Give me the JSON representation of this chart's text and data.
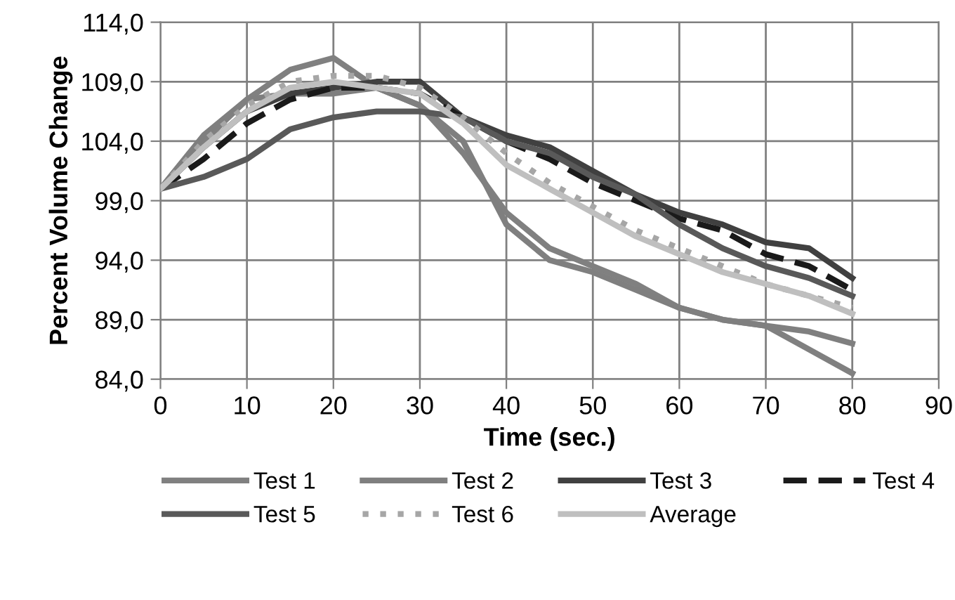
{
  "chart_data": {
    "type": "line",
    "xlabel": "Time (sec.)",
    "ylabel": "Percent Volume Change",
    "x": [
      0,
      5,
      10,
      15,
      20,
      25,
      30,
      35,
      40,
      45,
      50,
      55,
      60,
      65,
      70,
      75,
      80
    ],
    "series": [
      {
        "name": "Test 1",
        "color": "#808080",
        "line_style": "solid",
        "values": [
          100,
          104,
          107.5,
          110,
          111,
          108.5,
          107,
          103,
          98,
          95,
          93.5,
          92,
          90,
          89,
          88.5,
          86.5,
          84.5
        ]
      },
      {
        "name": "Test 2",
        "color": "#7f7f7f",
        "line_style": "solid",
        "values": [
          100,
          104.5,
          107.5,
          108,
          108,
          108.5,
          107,
          104,
          97,
          94,
          93,
          91.5,
          90,
          89,
          88.5,
          88,
          87
        ]
      },
      {
        "name": "Test 3",
        "color": "#404040",
        "line_style": "solid",
        "values": [
          100,
          103.5,
          106.5,
          108,
          108.5,
          109,
          109,
          106,
          104.5,
          103.5,
          101.5,
          99.5,
          98,
          97,
          95.5,
          95,
          92.5
        ]
      },
      {
        "name": "Test 4",
        "color": "#1a1a1a",
        "line_style": "dashed",
        "values": [
          100,
          102.5,
          105.5,
          107.5,
          108.5,
          108.5,
          108,
          106,
          104,
          102.5,
          100.5,
          99,
          97.5,
          96.5,
          94.5,
          93.5,
          91.5
        ]
      },
      {
        "name": "Test 5",
        "color": "#595959",
        "line_style": "solid",
        "values": [
          100,
          101,
          102.5,
          105,
          106,
          106.5,
          106.5,
          106,
          104,
          103,
          101,
          99.5,
          97,
          95,
          93.5,
          92.5,
          91
        ]
      },
      {
        "name": "Test 6",
        "color": "#a6a6a6",
        "line_style": "dotted",
        "values": [
          100,
          104,
          107,
          109,
          109.5,
          109.5,
          108.5,
          106,
          103,
          100.5,
          98.5,
          96.5,
          95,
          93.5,
          92,
          91,
          90
        ]
      },
      {
        "name": "Average",
        "color": "#bfbfbf",
        "line_style": "solid",
        "values": [
          100,
          103.5,
          106.5,
          108.5,
          109,
          108.5,
          108,
          105.5,
          102,
          100,
          98,
          96,
          94.5,
          93,
          92,
          91,
          89.5
        ]
      }
    ],
    "xlim": [
      0,
      90
    ],
    "xticks": [
      0,
      10,
      20,
      30,
      40,
      50,
      60,
      70,
      80,
      90
    ],
    "ylim": [
      84,
      114
    ],
    "yticks": [
      {
        "value": 84,
        "label": "84,0"
      },
      {
        "value": 89,
        "label": "89,0"
      },
      {
        "value": 94,
        "label": "94,0"
      },
      {
        "value": 99,
        "label": "99,0"
      },
      {
        "value": 104,
        "label": "104,0"
      },
      {
        "value": 109,
        "label": "109,0"
      },
      {
        "value": 114,
        "label": "114,0"
      }
    ],
    "grid": true,
    "legend": "bottom",
    "marker": "none"
  }
}
